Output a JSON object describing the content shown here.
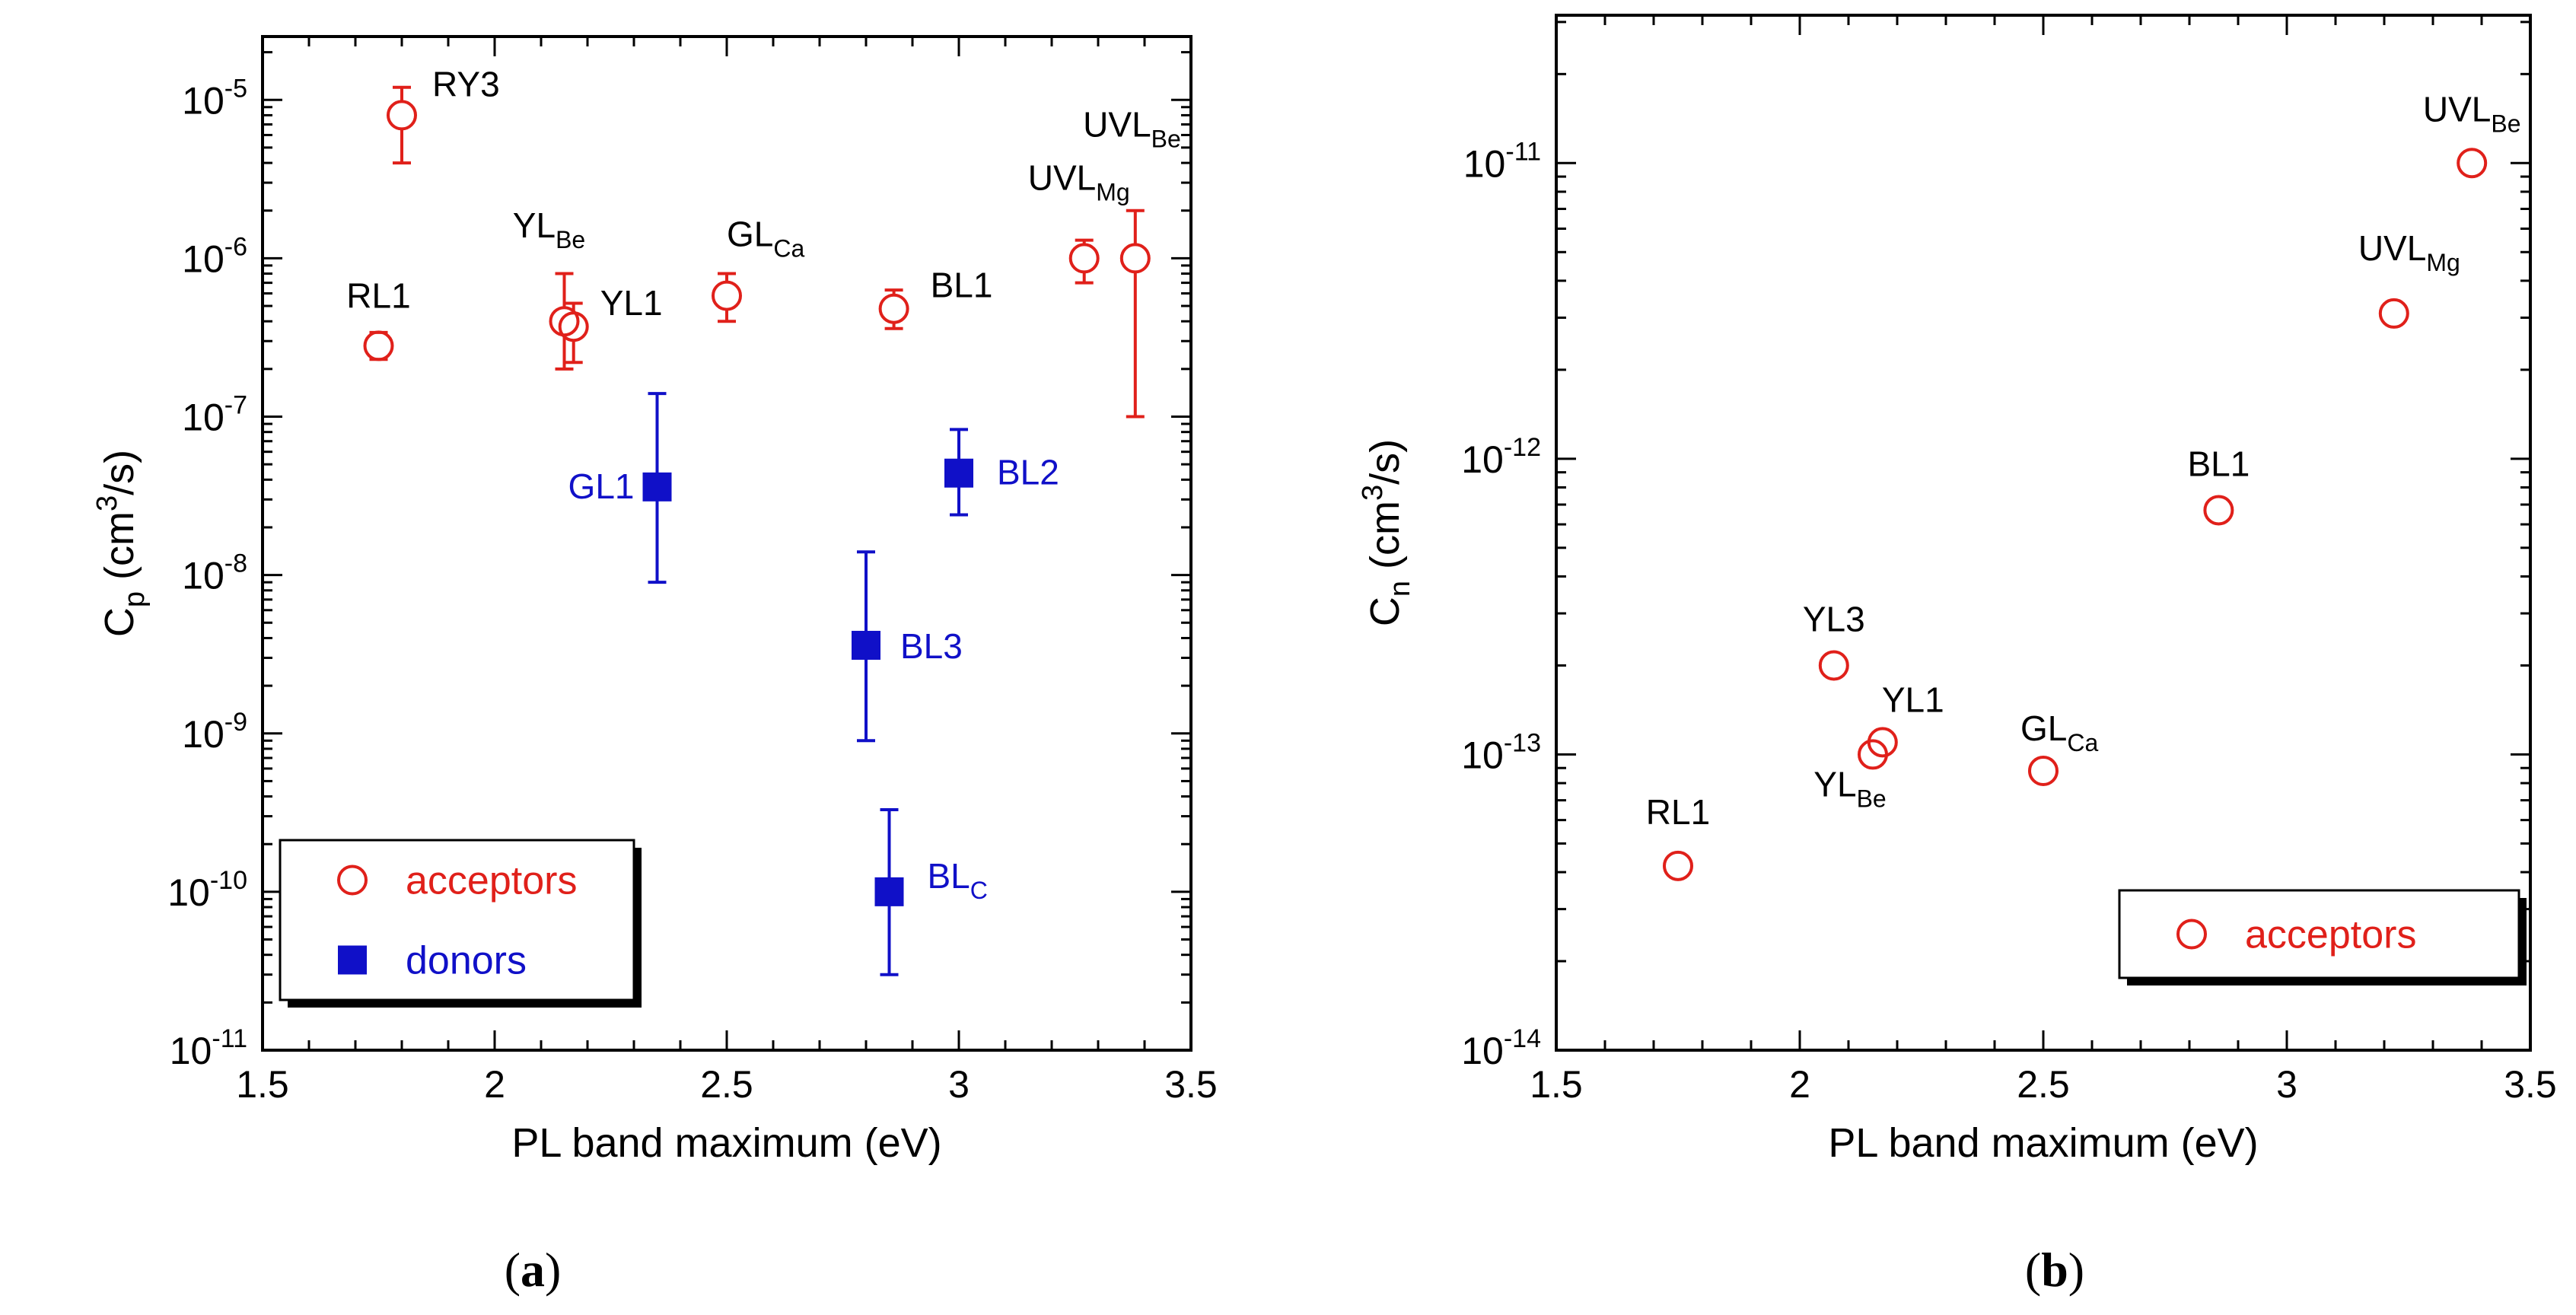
{
  "chart_data": [
    {
      "type": "scatter",
      "panel_label": "a",
      "xlabel": "PL band maximum (eV)",
      "ylabel": "C_p (cm^3/s)",
      "ylabel_main": "C",
      "ylabel_sub": "p",
      "ylabel_units_pre": " (cm",
      "ylabel_units_sup": "3",
      "ylabel_units_post": "/s)",
      "scale_y": "log",
      "xlim": [
        1.5,
        3.5
      ],
      "ylim_exp": [
        -11,
        -4.6
      ],
      "x_ticks": [
        "1.5",
        "2",
        "2.5",
        "3",
        "3.5"
      ],
      "y_ticks": [
        {
          "base": "10",
          "exp": "-11"
        },
        {
          "base": "10",
          "exp": "-10"
        },
        {
          "base": "10",
          "exp": "-9"
        },
        {
          "base": "10",
          "exp": "-8"
        },
        {
          "base": "10",
          "exp": "-7"
        },
        {
          "base": "10",
          "exp": "-6"
        },
        {
          "base": "10",
          "exp": "-5"
        }
      ],
      "legend": {
        "position": "bottom-left",
        "entries": [
          {
            "label": "acceptors",
            "marker": "open-circle",
            "color": "#e0201a"
          },
          {
            "label": "donors",
            "marker": "filled-square",
            "color": "#1010c8"
          }
        ]
      },
      "series": [
        {
          "name": "acceptors",
          "color": "#e0201a",
          "marker": "open-circle",
          "points": [
            {
              "x": 1.8,
              "y": 8e-06,
              "ylow": 4e-06,
              "yhigh": 1.2e-05,
              "label": "RY3",
              "sub": ""
            },
            {
              "x": 1.75,
              "y": 2.8e-07,
              "ylow": 2.3e-07,
              "yhigh": 3.4e-07,
              "label": "RL1",
              "sub": ""
            },
            {
              "x": 2.15,
              "y": 4e-07,
              "ylow": 2e-07,
              "yhigh": 8e-07,
              "label": "YL",
              "sub": "Be"
            },
            {
              "x": 2.17,
              "y": 3.7e-07,
              "ylow": 2.2e-07,
              "yhigh": 5.2e-07,
              "label": "YL1",
              "sub": ""
            },
            {
              "x": 2.5,
              "y": 5.8e-07,
              "ylow": 4e-07,
              "yhigh": 8e-07,
              "label": "GL",
              "sub": "Ca"
            },
            {
              "x": 2.86,
              "y": 4.8e-07,
              "ylow": 3.6e-07,
              "yhigh": 6.3e-07,
              "label": "BL1",
              "sub": ""
            },
            {
              "x": 3.27,
              "y": 1e-06,
              "ylow": 7e-07,
              "yhigh": 1.3e-06,
              "label": "UVL",
              "sub": "Mg"
            },
            {
              "x": 3.38,
              "y": 1e-06,
              "ylow": 1e-07,
              "yhigh": 2e-06,
              "label": "UVL",
              "sub": "Be"
            }
          ]
        },
        {
          "name": "donors",
          "color": "#1010c8",
          "marker": "filled-square",
          "points": [
            {
              "x": 2.35,
              "y": 3.6e-08,
              "ylow": 9e-09,
              "yhigh": 1.4e-07,
              "label": "GL1",
              "sub": ""
            },
            {
              "x": 3.0,
              "y": 4.4e-08,
              "ylow": 2.4e-08,
              "yhigh": 8.3e-08,
              "label": "BL2",
              "sub": ""
            },
            {
              "x": 2.8,
              "y": 3.6e-09,
              "ylow": 9e-10,
              "yhigh": 1.4e-08,
              "label": "BL3",
              "sub": ""
            },
            {
              "x": 2.85,
              "y": 1e-10,
              "ylow": 3e-11,
              "yhigh": 3.3e-10,
              "label": "BL",
              "sub": "C"
            }
          ]
        }
      ]
    },
    {
      "type": "scatter",
      "panel_label": "b",
      "xlabel": "PL band maximum (eV)",
      "ylabel": "C_n (cm^3/s)",
      "ylabel_main": "C",
      "ylabel_sub": "n",
      "ylabel_units_pre": " (cm",
      "ylabel_units_sup": "3",
      "ylabel_units_post": "/s)",
      "scale_y": "log",
      "xlim": [
        1.5,
        3.5
      ],
      "ylim_exp": [
        -14,
        -10.5
      ],
      "x_ticks": [
        "1.5",
        "2",
        "2.5",
        "3",
        "3.5"
      ],
      "y_ticks": [
        {
          "base": "10",
          "exp": "-14"
        },
        {
          "base": "10",
          "exp": "-13"
        },
        {
          "base": "10",
          "exp": "-12"
        },
        {
          "base": "10",
          "exp": "-11"
        }
      ],
      "legend": {
        "position": "bottom-right",
        "entries": [
          {
            "label": "acceptors",
            "marker": "open-circle",
            "color": "#e0201a"
          }
        ]
      },
      "series": [
        {
          "name": "acceptors",
          "color": "#e0201a",
          "marker": "open-circle",
          "points": [
            {
              "x": 1.75,
              "y": 4.2e-14,
              "label": "RL1",
              "sub": ""
            },
            {
              "x": 2.07,
              "y": 2e-13,
              "label": "YL3",
              "sub": ""
            },
            {
              "x": 2.15,
              "y": 1e-13,
              "label": "YL",
              "sub": "Be"
            },
            {
              "x": 2.17,
              "y": 1.1e-13,
              "label": "YL1",
              "sub": ""
            },
            {
              "x": 2.5,
              "y": 8.8e-14,
              "label": "GL",
              "sub": "Ca"
            },
            {
              "x": 2.86,
              "y": 6.7e-13,
              "label": "BL1",
              "sub": ""
            },
            {
              "x": 3.22,
              "y": 3.1e-12,
              "label": "UVL",
              "sub": "Mg"
            },
            {
              "x": 3.38,
              "y": 1e-11,
              "label": "UVL",
              "sub": "Be"
            }
          ]
        }
      ]
    }
  ]
}
